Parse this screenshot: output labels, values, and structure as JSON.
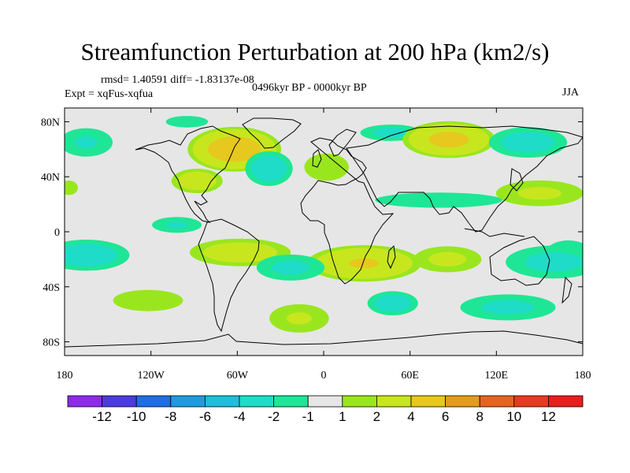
{
  "chart_data": {
    "type": "heatmap",
    "title": "Streamfunction Perturbation at 200 hPa (km2/s)",
    "stats_line": "rmsd= 1.40591 diff= -1.83137e-08",
    "experiment": "Expt = xqFus-xqfua",
    "period": "0496kyr BP - 0000kyr BP",
    "season": "JJA",
    "x_ticks": [
      {
        "value": -180,
        "label": "180"
      },
      {
        "value": -120,
        "label": "120W"
      },
      {
        "value": -60,
        "label": "60W"
      },
      {
        "value": 0,
        "label": "0"
      },
      {
        "value": 60,
        "label": "60E"
      },
      {
        "value": 120,
        "label": "120E"
      },
      {
        "value": 180,
        "label": "180"
      }
    ],
    "y_ticks": [
      {
        "value": 80,
        "label": "80N"
      },
      {
        "value": 40,
        "label": "40N"
      },
      {
        "value": 0,
        "label": "0"
      },
      {
        "value": -40,
        "label": "40S"
      },
      {
        "value": -80,
        "label": "80S"
      }
    ],
    "xlim": [
      -180,
      180
    ],
    "ylim": [
      -90,
      90
    ],
    "colorbar": {
      "labels": [
        "-12",
        "-10",
        "-8",
        "-6",
        "-4",
        "-2",
        "-1",
        "1",
        "2",
        "4",
        "6",
        "8",
        "10",
        "12"
      ],
      "colors": [
        "#8c2ce6",
        "#4a3ce0",
        "#1e6ee6",
        "#1e9be0",
        "#1ebedc",
        "#1edcc8",
        "#1ee696",
        "#e6e6e6",
        "#9ae61e",
        "#c8e61e",
        "#e6c81e",
        "#e69b1e",
        "#e6641e",
        "#e63c1e",
        "#e61e1e"
      ]
    },
    "anomalies": [
      {
        "lon": -62,
        "lat": 60,
        "value": 5.2,
        "slon": 24,
        "slat": 12
      },
      {
        "lon": -88,
        "lat": 37,
        "value": 3.2,
        "slon": 14,
        "slat": 7
      },
      {
        "lon": -38,
        "lat": 46,
        "value": -3.2,
        "slon": 13,
        "slat": 10
      },
      {
        "lon": 2,
        "lat": 47,
        "value": 2.0,
        "slon": 14,
        "slat": 9
      },
      {
        "lon": 47,
        "lat": 72,
        "value": -2.5,
        "slon": 18,
        "slat": 5
      },
      {
        "lon": 87,
        "lat": 67,
        "value": 4.6,
        "slon": 24,
        "slat": 10
      },
      {
        "lon": 142,
        "lat": 65,
        "value": -2.8,
        "slon": 22,
        "slat": 9
      },
      {
        "lon": -165,
        "lat": 65,
        "value": -2.2,
        "slon": 16,
        "slat": 9
      },
      {
        "lon": 150,
        "lat": 28,
        "value": 2.3,
        "slon": 26,
        "slat": 8
      },
      {
        "lon": -177,
        "lat": 32,
        "value": 1.8,
        "slon": 6,
        "slat": 5
      },
      {
        "lon": -102,
        "lat": 5,
        "value": -2.2,
        "slon": 15,
        "slat": 5
      },
      {
        "lon": -165,
        "lat": -17,
        "value": -3.0,
        "slon": 24,
        "slat": 9
      },
      {
        "lon": 170,
        "lat": -17,
        "value": -2.5,
        "slon": 14,
        "slat": 9
      },
      {
        "lon": 160,
        "lat": -22,
        "value": -2.5,
        "slon": 28,
        "slat": 10
      },
      {
        "lon": -58,
        "lat": -15,
        "value": 3.0,
        "slon": 28,
        "slat": 8
      },
      {
        "lon": 28,
        "lat": -23,
        "value": 4.2,
        "slon": 30,
        "slat": 10
      },
      {
        "lon": 86,
        "lat": -20,
        "value": 2.4,
        "slon": 20,
        "slat": 8
      },
      {
        "lon": -23,
        "lat": -26,
        "value": -2.4,
        "slon": 20,
        "slat": 8
      },
      {
        "lon": 80,
        "lat": 23,
        "value": -2.0,
        "slon": 40,
        "slat": 5
      },
      {
        "lon": -122,
        "lat": -50,
        "value": 2.0,
        "slon": 22,
        "slat": 7
      },
      {
        "lon": -17,
        "lat": -63,
        "value": 2.2,
        "slon": 18,
        "slat": 9
      },
      {
        "lon": 48,
        "lat": -52,
        "value": -3.0,
        "slon": 14,
        "slat": 7
      },
      {
        "lon": 128,
        "lat": -55,
        "value": -2.4,
        "slon": 28,
        "slat": 8
      },
      {
        "lon": -95,
        "lat": 80,
        "value": -1.8,
        "slon": 14,
        "slat": 4
      }
    ]
  }
}
